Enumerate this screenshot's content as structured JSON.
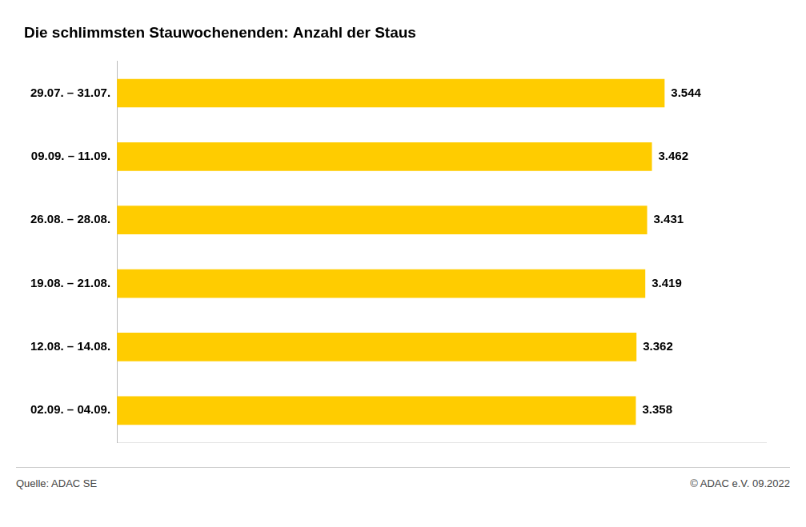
{
  "chart_data": {
    "type": "bar",
    "orientation": "horizontal",
    "title": "Die schlimmsten Stauwochenenden: Anzahl der Staus",
    "categories": [
      "29.07. – 31.07.",
      "09.09. – 11.09.",
      "26.08. – 28.08.",
      "19.08. – 21.08.",
      "12.08. – 14.08.",
      "02.09. – 04.09."
    ],
    "values": [
      3544,
      3462,
      3431,
      3419,
      3362,
      3358
    ],
    "value_labels": [
      "3.544",
      "3.462",
      "3.431",
      "3.419",
      "3.362",
      "3.358"
    ],
    "data_labels": true,
    "color": "#FFCC00",
    "xlim": [
      0,
      4200
    ],
    "tick_labels": "y",
    "grid": false,
    "annotations": [
      "Quelle: ADAC SE",
      "© ADAC e.V. 09.2022"
    ]
  }
}
